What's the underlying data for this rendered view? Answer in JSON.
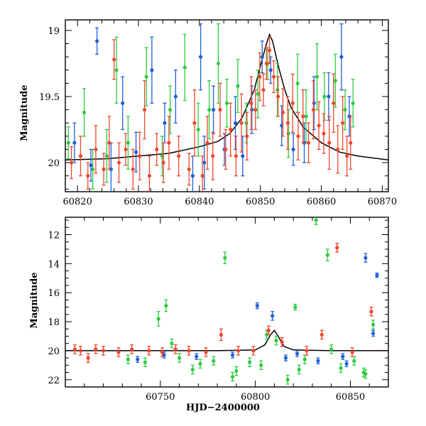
{
  "chart_data": [
    {
      "type": "scatter",
      "panel": "top",
      "title": "",
      "xlabel": "",
      "ylabel": "Magnitude",
      "xlim": [
        60818,
        60871
      ],
      "ylim": [
        20.22,
        18.92
      ],
      "y_inverted": true,
      "x_ticks": [
        60820,
        60830,
        60840,
        60850,
        60860,
        60870
      ],
      "y_ticks": [
        19,
        19.5,
        20
      ],
      "y_tick_labels": [
        "19",
        "19.5",
        "20"
      ],
      "colors": {
        "green": "#2ecc40",
        "blue": "#1f5fd8",
        "red": "#f0462d",
        "model": "#000000"
      },
      "model_curve": {
        "name": "",
        "x": [
          60818,
          60825,
          60830,
          60835,
          60840,
          60843,
          60845,
          60847,
          60849,
          60850,
          60851,
          60851.5,
          60852,
          60853,
          60854,
          60855,
          60857,
          60860,
          60863,
          60866,
          60871
        ],
        "y": [
          19.98,
          19.97,
          19.95,
          19.93,
          19.88,
          19.84,
          19.78,
          19.66,
          19.45,
          19.27,
          19.1,
          19.03,
          19.08,
          19.28,
          19.45,
          19.58,
          19.73,
          19.85,
          19.92,
          19.95,
          19.98
        ]
      },
      "series": [
        {
          "name": "",
          "color": "green",
          "x": [
            60818.5,
            60821.1,
            60822.5,
            60824.8,
            60826.4,
            60828.3,
            60831.3,
            60833.9,
            60835.2,
            60837.6,
            60839.8,
            60841.6,
            60843.1,
            60844.5,
            60846.3,
            60847.7,
            60849.6,
            60851.2,
            60852.8,
            60854.6,
            60856.1,
            60857.5,
            60859.3,
            60860.5,
            60862.3,
            60863.9,
            60865.2
          ],
          "y": [
            19.85,
            19.62,
            20.05,
            19.95,
            19.3,
            19.85,
            19.35,
            19.95,
            19.6,
            19.28,
            19.75,
            19.6,
            19.25,
            19.55,
            19.42,
            19.7,
            19.48,
            19.25,
            19.45,
            19.78,
            19.4,
            19.65,
            19.35,
            19.5,
            19.38,
            19.6,
            19.55
          ],
          "err": [
            0.12,
            0.18,
            0.15,
            0.2,
            0.25,
            0.2,
            0.22,
            0.15,
            0.18,
            0.25,
            0.2,
            0.22,
            0.3,
            0.18,
            0.2,
            0.15,
            0.18,
            0.12,
            0.2,
            0.18,
            0.22,
            0.2,
            0.25,
            0.18,
            0.2,
            0.15,
            0.18
          ]
        },
        {
          "name": "",
          "color": "blue",
          "x": [
            60819.5,
            60822.2,
            60823.2,
            60825.5,
            60827.4,
            60829.6,
            60832.2,
            60834.3,
            60836.1,
            60838.9,
            60840.2,
            60840.8,
            60842.3,
            60844.1,
            60845.9,
            60847.1,
            60848.6,
            60850.3,
            60851.7,
            60853.5,
            60855.4,
            60857.2,
            60858.8,
            60861.2,
            60863.3,
            60864.6
          ],
          "y": [
            19.85,
            20.02,
            19.08,
            20.05,
            19.55,
            19.92,
            19.3,
            19.7,
            19.5,
            20.1,
            19.2,
            20.0,
            19.6,
            19.9,
            19.7,
            19.95,
            19.6,
            19.2,
            19.3,
            19.72,
            19.9,
            19.85,
            19.55,
            19.5,
            19.2,
            19.65
          ],
          "err": [
            0.15,
            0.12,
            0.1,
            0.2,
            0.2,
            0.15,
            0.25,
            0.15,
            0.2,
            0.15,
            0.25,
            0.2,
            0.18,
            0.12,
            0.2,
            0.15,
            0.18,
            0.12,
            0.1,
            0.15,
            0.12,
            0.15,
            0.2,
            0.18,
            0.25,
            0.15
          ]
        },
        {
          "name": "",
          "color": "red",
          "x": [
            60819.0,
            60820.5,
            60821.7,
            60823.0,
            60824.3,
            60825.2,
            60826.0,
            60826.8,
            60827.9,
            60829.1,
            60830.2,
            60831.0,
            60831.8,
            60833.0,
            60834.1,
            60835.0,
            60836.6,
            60838.3,
            60839.2,
            60840.5,
            60841.3,
            60842.2,
            60843.4,
            60844.3,
            60845.1,
            60846.0,
            60846.9,
            60847.8,
            60848.5,
            60849.2,
            60849.9,
            60850.5,
            60851.0,
            60851.5,
            60852.2,
            60852.9,
            60853.7,
            60854.5,
            60855.3,
            60856.2,
            60857.0,
            60857.9,
            60858.7,
            60859.6,
            60860.4,
            60861.3,
            60862.0,
            60862.7,
            60863.5,
            60864.2,
            60864.8
          ],
          "y": [
            20.0,
            19.95,
            20.1,
            19.9,
            20.05,
            19.85,
            19.22,
            20.0,
            19.9,
            20.05,
            19.95,
            19.6,
            20.1,
            19.9,
            20.0,
            19.85,
            19.95,
            20.05,
            19.7,
            20.1,
            19.85,
            19.95,
            19.6,
            19.9,
            19.75,
            19.95,
            19.7,
            19.8,
            19.55,
            19.6,
            19.35,
            19.45,
            19.25,
            19.15,
            19.35,
            19.5,
            19.62,
            19.7,
            19.55,
            19.8,
            19.65,
            19.85,
            19.6,
            19.72,
            19.78,
            19.85,
            19.55,
            19.9,
            19.7,
            19.95,
            19.85
          ],
          "err": [
            0.12,
            0.15,
            0.1,
            0.18,
            0.12,
            0.2,
            0.15,
            0.15,
            0.12,
            0.15,
            0.18,
            0.22,
            0.15,
            0.12,
            0.15,
            0.2,
            0.15,
            0.12,
            0.25,
            0.15,
            0.2,
            0.18,
            0.2,
            0.15,
            0.2,
            0.15,
            0.22,
            0.18,
            0.2,
            0.15,
            0.18,
            0.12,
            0.12,
            0.1,
            0.12,
            0.15,
            0.18,
            0.2,
            0.22,
            0.18,
            0.2,
            0.15,
            0.22,
            0.18,
            0.15,
            0.2,
            0.22,
            0.18,
            0.2,
            0.15,
            0.2
          ]
        }
      ]
    },
    {
      "type": "scatter",
      "panel": "bottom",
      "title": "",
      "xlabel": "HJD−2400000",
      "ylabel": "Magnitude",
      "xlim": [
        60700,
        60870
      ],
      "ylim": [
        22.5,
        10.8
      ],
      "y_inverted": true,
      "x_ticks": [
        60750,
        60800,
        60850
      ],
      "y_ticks": [
        12,
        14,
        16,
        18,
        20,
        22
      ],
      "y_tick_labels": [
        "12",
        "14",
        "16",
        "18",
        "20",
        "22"
      ],
      "colors": {
        "green": "#2ecc40",
        "blue": "#1f5fd8",
        "red": "#f0462d",
        "model": "#000000"
      },
      "model_curve": {
        "name": "",
        "x": [
          60700,
          60780,
          60800,
          60805,
          60808,
          60810,
          60812,
          60815,
          60820,
          60840,
          60870
        ],
        "y": [
          20.0,
          20.0,
          19.95,
          19.6,
          18.9,
          18.6,
          19.0,
          19.7,
          19.95,
          20.0,
          20.0
        ]
      },
      "series": [
        {
          "name": "",
          "color": "green",
          "x": [
            60742,
            60749,
            60753,
            60760,
            60767,
            60778,
            60784,
            60790,
            60797,
            60803,
            60811,
            60817,
            60821,
            60826,
            60832,
            60838,
            60845,
            60852,
            60857,
            60862,
            60733,
            60756,
            60771,
            60788,
            60806,
            60823,
            60840,
            60858
          ],
          "y": [
            20.8,
            17.8,
            16.9,
            20.5,
            21.3,
            20.7,
            13.6,
            21.4,
            20.8,
            21.0,
            19.3,
            22.0,
            17.0,
            20.6,
            11.0,
            13.4,
            21.2,
            20.7,
            21.5,
            18.2,
            20.6,
            19.5,
            20.9,
            21.8,
            18.9,
            21.3,
            19.9,
            21.6
          ],
          "err": [
            0.3,
            0.5,
            0.4,
            0.3,
            0.3,
            0.3,
            0.4,
            0.3,
            0.3,
            0.3,
            0.3,
            0.3,
            0.2,
            0.3,
            0.3,
            0.4,
            0.3,
            0.3,
            0.3,
            0.3,
            0.3,
            0.3,
            0.3,
            0.3,
            0.3,
            0.3,
            0.3,
            0.3
          ]
        },
        {
          "name": "",
          "color": "blue",
          "x": [
            60738,
            60752,
            60769,
            60788,
            60801,
            60809,
            60822,
            60833,
            60846,
            60858,
            60862,
            60864,
            60816,
            60848
          ],
          "y": [
            20.6,
            20.3,
            20.4,
            20.3,
            16.9,
            17.6,
            20.2,
            20.7,
            20.4,
            13.6,
            18.8,
            14.8,
            20.5,
            20.9
          ],
          "err": [
            0.2,
            0.2,
            0.2,
            0.2,
            0.2,
            0.3,
            0.2,
            0.2,
            0.2,
            0.3,
            0.2,
            0.15,
            0.2,
            0.2
          ]
        },
        {
          "name": "",
          "color": "red",
          "x": [
            60705,
            60708,
            60712,
            60716,
            60720,
            60728,
            60735,
            60744,
            60751,
            60758,
            60765,
            60774,
            60782,
            60791,
            60799,
            60807,
            60814,
            60827,
            60835,
            60843,
            60851,
            60861
          ],
          "y": [
            19.9,
            20.0,
            20.5,
            19.9,
            20.0,
            20.1,
            19.9,
            20.0,
            20.1,
            19.9,
            20.0,
            20.1,
            18.9,
            20.0,
            20.0,
            18.6,
            19.4,
            20.0,
            18.9,
            12.9,
            20.1,
            17.3
          ],
          "err": [
            0.3,
            0.3,
            0.3,
            0.3,
            0.3,
            0.3,
            0.3,
            0.3,
            0.3,
            0.3,
            0.3,
            0.3,
            0.4,
            0.3,
            0.3,
            0.3,
            0.3,
            0.3,
            0.3,
            0.3,
            0.3,
            0.3
          ]
        }
      ]
    }
  ]
}
